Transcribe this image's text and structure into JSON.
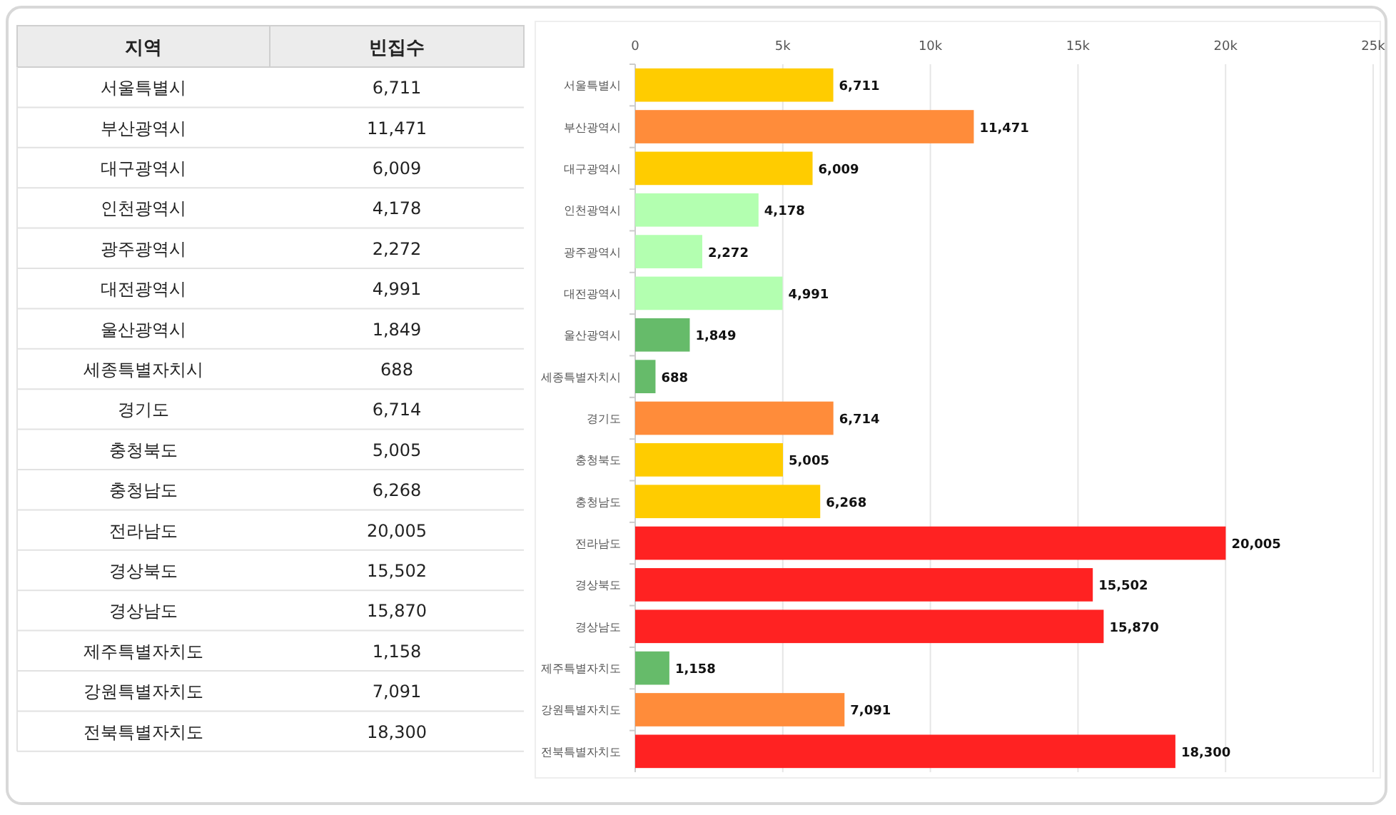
{
  "chart_data": {
    "type": "bar",
    "orientation": "horizontal",
    "grid": "x",
    "value_labels": [
      "6,711",
      "11,471",
      "6,009",
      "4,178",
      "2,272",
      "4,991",
      "1,849",
      "688",
      "6,714",
      "5,005",
      "6,268",
      "20,005",
      "15,502",
      "15,870",
      "1,158",
      "7,091",
      "18,300"
    ],
    "annotations": [
      "지역",
      "빈집수"
    ],
    "categories": [
      "서울특별시",
      "부산광역시",
      "대구광역시",
      "인천광역시",
      "광주광역시",
      "대전광역시",
      "울산광역시",
      "세종특별자치시",
      "경기도",
      "충청북도",
      "충청남도",
      "전라남도",
      "경상북도",
      "경상남도",
      "제주특별자치도",
      "강원특별자치도",
      "전북특별자치도"
    ],
    "values": [
      6711,
      11471,
      6009,
      4178,
      2272,
      4991,
      1849,
      688,
      6714,
      5005,
      6268,
      20005,
      15502,
      15870,
      1158,
      7091,
      18300
    ],
    "colors": [
      "#ffcc00",
      "#ff8c3a",
      "#ffcc00",
      "#b3ffb0",
      "#b3ffb0",
      "#b3ffb0",
      "#66bb6a",
      "#66bb6a",
      "#ff8c3a",
      "#ffcc00",
      "#ffcc00",
      "#ff2222",
      "#ff2222",
      "#ff2222",
      "#66bb6a",
      "#ff8c3a",
      "#ff2222"
    ],
    "xlim": [
      0,
      25000
    ],
    "xticks": [
      {
        "value": 0,
        "label": "0"
      },
      {
        "value": 5000,
        "label": "5k"
      },
      {
        "value": 10000,
        "label": "10k"
      },
      {
        "value": 15000,
        "label": "15k"
      },
      {
        "value": 20000,
        "label": "20k"
      },
      {
        "value": 25000,
        "label": "25k"
      }
    ]
  }
}
